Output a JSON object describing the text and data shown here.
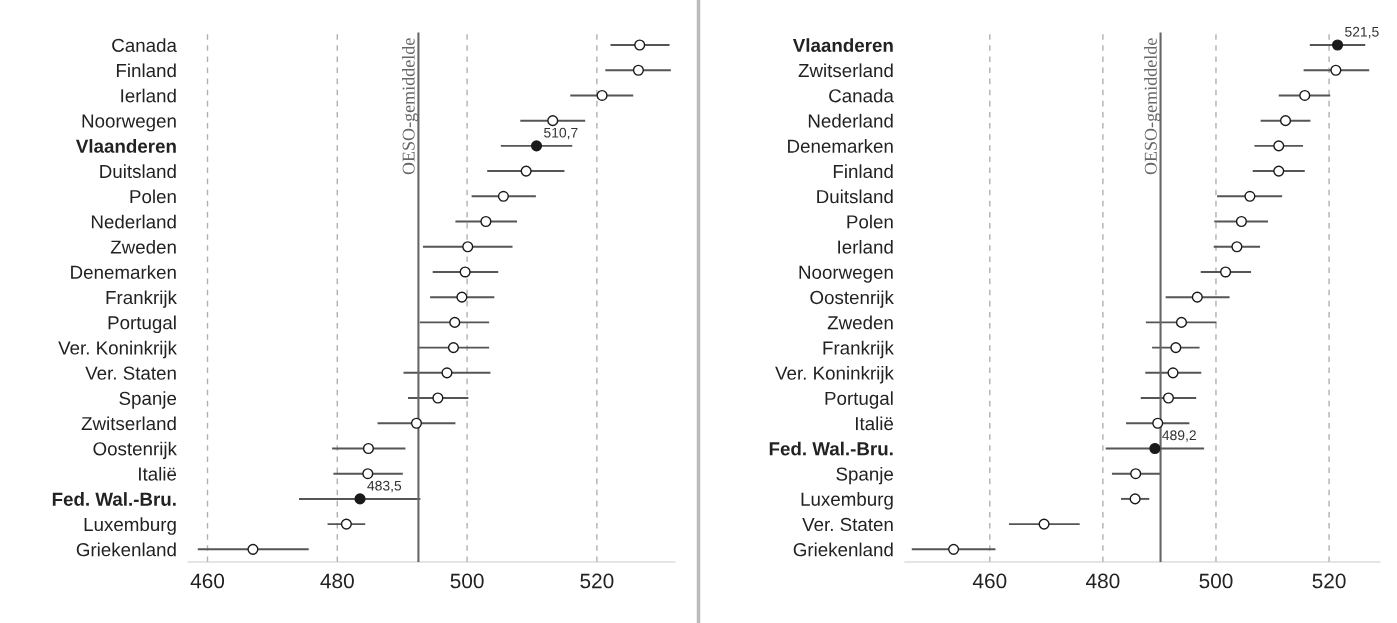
{
  "chart_data": [
    {
      "type": "scatter",
      "orientation": "horizontal",
      "categories": [
        "Canada",
        "Finland",
        "Ierland",
        "Noorwegen",
        "Vlaanderen",
        "Duitsland",
        "Polen",
        "Nederland",
        "Zweden",
        "Denemarken",
        "Frankrijk",
        "Portugal",
        "Ver. Koninkrijk",
        "Ver. Staten",
        "Spanje",
        "Zwitserland",
        "Oostenrijk",
        "Italië",
        "Fed. Wal.-Bru.",
        "Luxemburg",
        "Griekenland"
      ],
      "values": [
        526.6,
        526.4,
        520.8,
        513.2,
        510.7,
        509.1,
        505.6,
        502.9,
        500.1,
        499.7,
        499.2,
        498.1,
        497.9,
        496.9,
        495.5,
        492.2,
        484.8,
        484.7,
        483.5,
        481.4,
        467.0
      ],
      "errors": [
        [
          522.1,
          531.2
        ],
        [
          521.3,
          531.4
        ],
        [
          515.9,
          525.6
        ],
        [
          508.2,
          518.2
        ],
        [
          505.2,
          516.2
        ],
        [
          503.1,
          515.0
        ],
        [
          500.7,
          510.6
        ],
        [
          498.2,
          507.7
        ],
        [
          493.2,
          507.0
        ],
        [
          494.7,
          504.8
        ],
        [
          494.3,
          504.2
        ],
        [
          492.7,
          503.4
        ],
        [
          492.4,
          503.4
        ],
        [
          490.2,
          503.6
        ],
        [
          490.9,
          500.2
        ],
        [
          486.2,
          498.2
        ],
        [
          479.2,
          490.5
        ],
        [
          479.4,
          490.1
        ],
        [
          474.1,
          492.8
        ],
        [
          478.5,
          484.3
        ],
        [
          458.5,
          475.6
        ]
      ],
      "colors": [
        "#ffffff",
        "#ffffff",
        "#ffffff",
        "#ffffff",
        "#1a1a1a",
        "#ffffff",
        "#ffffff",
        "#ffffff",
        "#ffffff",
        "#ffffff",
        "#ffffff",
        "#ffffff",
        "#ffffff",
        "#ffffff",
        "#ffffff",
        "#ffffff",
        "#ffffff",
        "#ffffff",
        "#1a1a1a",
        "#ffffff",
        "#ffffff"
      ],
      "value_labels": [
        null,
        null,
        null,
        null,
        "510,7",
        null,
        null,
        null,
        null,
        null,
        null,
        null,
        null,
        null,
        null,
        null,
        null,
        null,
        "483,5",
        null,
        null
      ],
      "xlim": [
        457,
        532
      ],
      "xticks": [
        460,
        480,
        500,
        520
      ],
      "grid": "x",
      "marker": "circle",
      "ref_lines": [
        {
          "axis": "x",
          "value": 492.5,
          "label": "OESO-gemiddelde",
          "color": "#666666"
        }
      ]
    },
    {
      "type": "scatter",
      "orientation": "horizontal",
      "categories": [
        "Vlaanderen",
        "Zwitserland",
        "Canada",
        "Nederland",
        "Denemarken",
        "Finland",
        "Duitsland",
        "Polen",
        "Ierland",
        "Noorwegen",
        "Oostenrijk",
        "Zweden",
        "Frankrijk",
        "Ver. Koninkrijk",
        "Portugal",
        "Italië",
        "Fed. Wal.-Bru.",
        "Spanje",
        "Luxemburg",
        "Ver. Staten",
        "Griekenland"
      ],
      "values": [
        521.5,
        521.2,
        515.7,
        512.3,
        511.1,
        511.1,
        506.0,
        504.5,
        503.7,
        501.7,
        496.7,
        493.9,
        492.9,
        492.4,
        491.6,
        489.7,
        489.2,
        485.8,
        485.7,
        469.6,
        453.6
      ],
      "errors": [
        [
          516.6,
          526.4
        ],
        [
          515.5,
          527.1
        ],
        [
          511.1,
          520.2
        ],
        [
          507.9,
          516.7
        ],
        [
          506.8,
          515.4
        ],
        [
          506.5,
          515.7
        ],
        [
          500.2,
          511.7
        ],
        [
          499.7,
          509.2
        ],
        [
          499.6,
          507.8
        ],
        [
          497.3,
          506.2
        ],
        [
          491.1,
          502.4
        ],
        [
          487.6,
          500.1
        ],
        [
          488.7,
          497.1
        ],
        [
          487.5,
          497.4
        ],
        [
          486.7,
          496.5
        ],
        [
          484.1,
          495.3
        ],
        [
          480.5,
          497.9
        ],
        [
          481.6,
          490.2
        ],
        [
          483.2,
          488.2
        ],
        [
          463.4,
          475.9
        ],
        [
          446.2,
          461.0
        ]
      ],
      "colors": [
        "#1a1a1a",
        "#ffffff",
        "#ffffff",
        "#ffffff",
        "#ffffff",
        "#ffffff",
        "#ffffff",
        "#ffffff",
        "#ffffff",
        "#ffffff",
        "#ffffff",
        "#ffffff",
        "#ffffff",
        "#ffffff",
        "#ffffff",
        "#ffffff",
        "#1a1a1a",
        "#ffffff",
        "#ffffff",
        "#ffffff",
        "#ffffff"
      ],
      "value_labels": [
        "521,5",
        null,
        null,
        null,
        null,
        null,
        null,
        null,
        null,
        null,
        null,
        null,
        null,
        null,
        null,
        null,
        "489,2",
        null,
        null,
        null,
        null
      ],
      "xlim": [
        445,
        529
      ],
      "xticks": [
        460,
        480,
        500,
        520
      ],
      "grid": "x",
      "marker": "circle",
      "ref_lines": [
        {
          "axis": "x",
          "value": 490.2,
          "label": "OESO-gemiddelde",
          "color": "#666666"
        }
      ]
    }
  ]
}
